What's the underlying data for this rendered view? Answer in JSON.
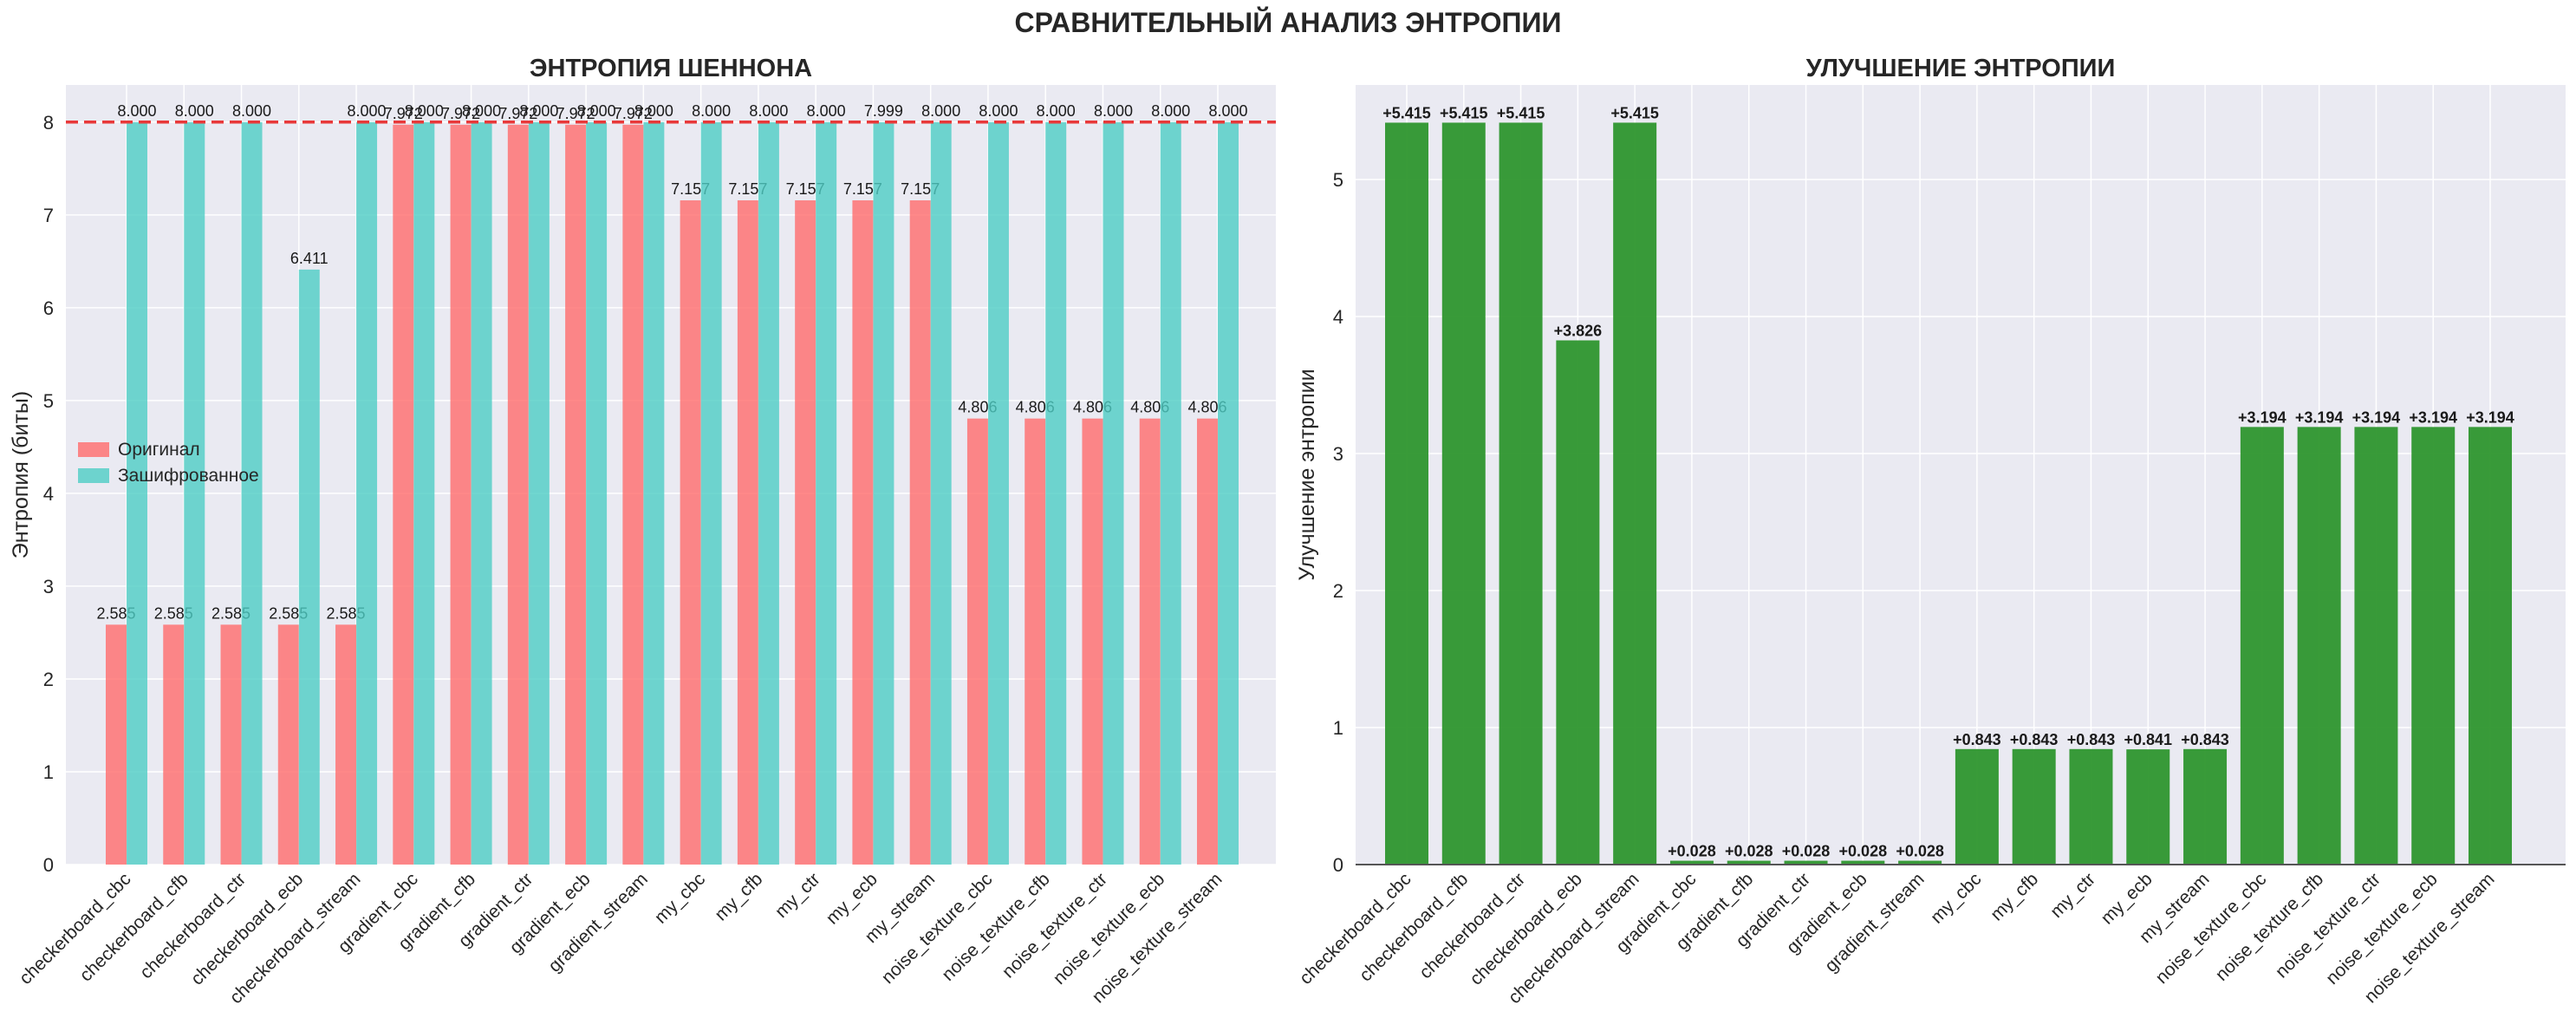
{
  "figure_title": "СРАВНИТЕЛЬНЫЙ АНАЛИЗ ЭНТРОПИИ",
  "colors": {
    "panel_bg": "#EAEAF2",
    "original": "#FF6B6B",
    "encrypted": "#4ECDC4",
    "improvement": "#2E962E",
    "reference_line": "#E8393A",
    "grid": "#FFFFFF",
    "text": "#262626"
  },
  "chart_data": [
    {
      "type": "bar",
      "title": "ЭНТРОПИЯ ШЕННОНА",
      "xlabel": "",
      "ylabel": "Энтропия (биты)",
      "ylim": [
        0,
        8.4
      ],
      "yticks": [
        0,
        1,
        2,
        3,
        4,
        5,
        6,
        7,
        8
      ],
      "reference_line": 8,
      "legend_position": "center-left",
      "categories": [
        "checkerboard_cbc",
        "checkerboard_cfb",
        "checkerboard_ctr",
        "checkerboard_ecb",
        "checkerboard_stream",
        "gradient_cbc",
        "gradient_cfb",
        "gradient_ctr",
        "gradient_ecb",
        "gradient_stream",
        "my_cbc",
        "my_cfb",
        "my_ctr",
        "my_ecb",
        "my_stream",
        "noise_texture_cbc",
        "noise_texture_cfb",
        "noise_texture_ctr",
        "noise_texture_ecb",
        "noise_texture_stream"
      ],
      "series": [
        {
          "name": "Оригинал",
          "values": [
            2.585,
            2.585,
            2.585,
            2.585,
            2.585,
            7.972,
            7.972,
            7.972,
            7.972,
            7.972,
            7.157,
            7.157,
            7.157,
            7.157,
            7.157,
            4.806,
            4.806,
            4.806,
            4.806,
            4.806
          ],
          "labels": [
            "2.585",
            "2.585",
            "2.585",
            "2.585",
            "2.585",
            "7.972",
            "7.972",
            "7.972",
            "7.972",
            "7.972",
            "7.157",
            "7.157",
            "7.157",
            "7.157",
            "7.157",
            "4.806",
            "4.806",
            "4.806",
            "4.806",
            "4.806"
          ]
        },
        {
          "name": "Зашифрованное",
          "values": [
            8.0,
            8.0,
            8.0,
            6.411,
            8.0,
            8.0,
            8.0,
            8.0,
            8.0,
            8.0,
            8.0,
            8.0,
            8.0,
            7.999,
            8.0,
            8.0,
            8.0,
            8.0,
            8.0,
            8.0
          ],
          "labels": [
            "8.000",
            "8.000",
            "8.000",
            "6.411",
            "8.000",
            "8.000",
            "8.000",
            "8.000",
            "8.000",
            "8.000",
            "8.000",
            "8.000",
            "8.000",
            "7.999",
            "8.000",
            "8.000",
            "8.000",
            "8.000",
            "8.000",
            "8.000"
          ]
        }
      ]
    },
    {
      "type": "bar",
      "title": "УЛУЧШЕНИЕ ЭНТРОПИИ",
      "xlabel": "",
      "ylabel": "Улучшение энтропии",
      "ylim": [
        0,
        5.69
      ],
      "yticks": [
        0,
        1,
        2,
        3,
        4,
        5
      ],
      "categories": [
        "checkerboard_cbc",
        "checkerboard_cfb",
        "checkerboard_ctr",
        "checkerboard_ecb",
        "checkerboard_stream",
        "gradient_cbc",
        "gradient_cfb",
        "gradient_ctr",
        "gradient_ecb",
        "gradient_stream",
        "my_cbc",
        "my_cfb",
        "my_ctr",
        "my_ecb",
        "my_stream",
        "noise_texture_cbc",
        "noise_texture_cfb",
        "noise_texture_ctr",
        "noise_texture_ecb",
        "noise_texture_stream"
      ],
      "values": [
        5.415,
        5.415,
        5.415,
        3.826,
        5.415,
        0.028,
        0.028,
        0.028,
        0.028,
        0.028,
        0.843,
        0.843,
        0.843,
        0.841,
        0.843,
        3.194,
        3.194,
        3.194,
        3.194,
        3.194
      ],
      "labels": [
        "+5.415",
        "+5.415",
        "+5.415",
        "+3.826",
        "+5.415",
        "+0.028",
        "+0.028",
        "+0.028",
        "+0.028",
        "+0.028",
        "+0.843",
        "+0.843",
        "+0.843",
        "+0.841",
        "+0.843",
        "+3.194",
        "+3.194",
        "+3.194",
        "+3.194",
        "+3.194"
      ]
    }
  ]
}
